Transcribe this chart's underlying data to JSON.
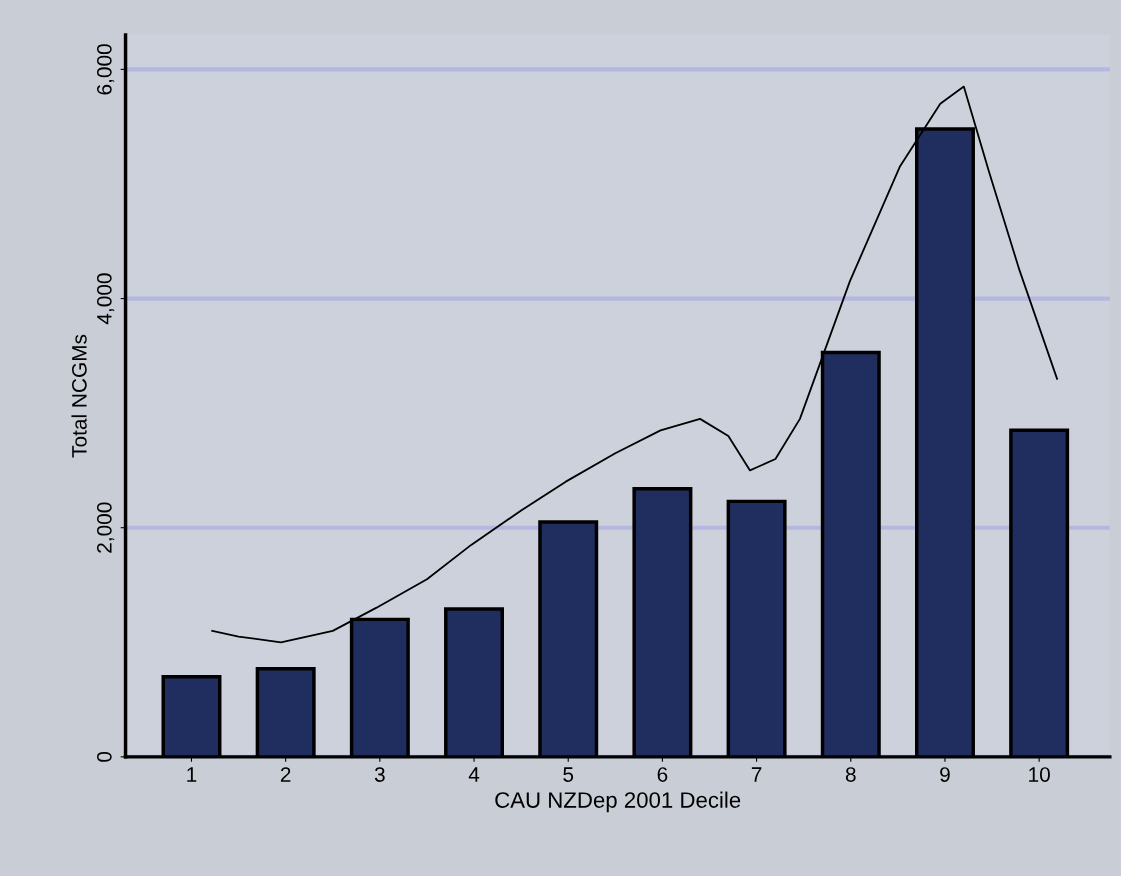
{
  "chart_data": {
    "type": "bar",
    "xlabel": "CAU NZDep 2001 Decile",
    "ylabel": "Total NCGMs",
    "x": [
      1,
      2,
      3,
      4,
      5,
      6,
      7,
      8,
      9,
      10
    ],
    "xlim": [
      0.3,
      10.75
    ],
    "xticks": [
      1,
      2,
      3,
      4,
      5,
      6,
      7,
      8,
      9,
      10
    ],
    "ylim": [
      0,
      6300
    ],
    "yticks": [
      {
        "value": 0,
        "label": "0"
      },
      {
        "value": 2000,
        "label": "2,000"
      },
      {
        "value": 4000,
        "label": "4,000"
      },
      {
        "value": 6000,
        "label": "6,000"
      }
    ],
    "grid": "y",
    "legend": false,
    "marker": "none",
    "series": [
      {
        "color": "#1f2e5e",
        "values": [
          700,
          770,
          1200,
          1290,
          2050,
          2340,
          2230,
          3530,
          5480,
          2850
        ]
      },
      {
        "type": "line",
        "color": "#000000",
        "x": [
          1.22,
          1.5,
          1.95,
          2.5,
          2.96,
          3.5,
          3.97,
          4.5,
          4.97,
          5.5,
          5.98,
          6.4,
          6.7,
          6.93,
          7.2,
          7.46,
          7.99,
          8.52,
          8.95,
          9.2,
          9.47,
          9.79,
          10.19
        ],
        "values": [
          1100,
          1050,
          1000,
          1100,
          1300,
          1550,
          1850,
          2150,
          2400,
          2650,
          2850,
          2950,
          2800,
          2500,
          2600,
          2950,
          4150,
          5150,
          5700,
          5850,
          5100,
          4250,
          3300
        ]
      }
    ]
  }
}
